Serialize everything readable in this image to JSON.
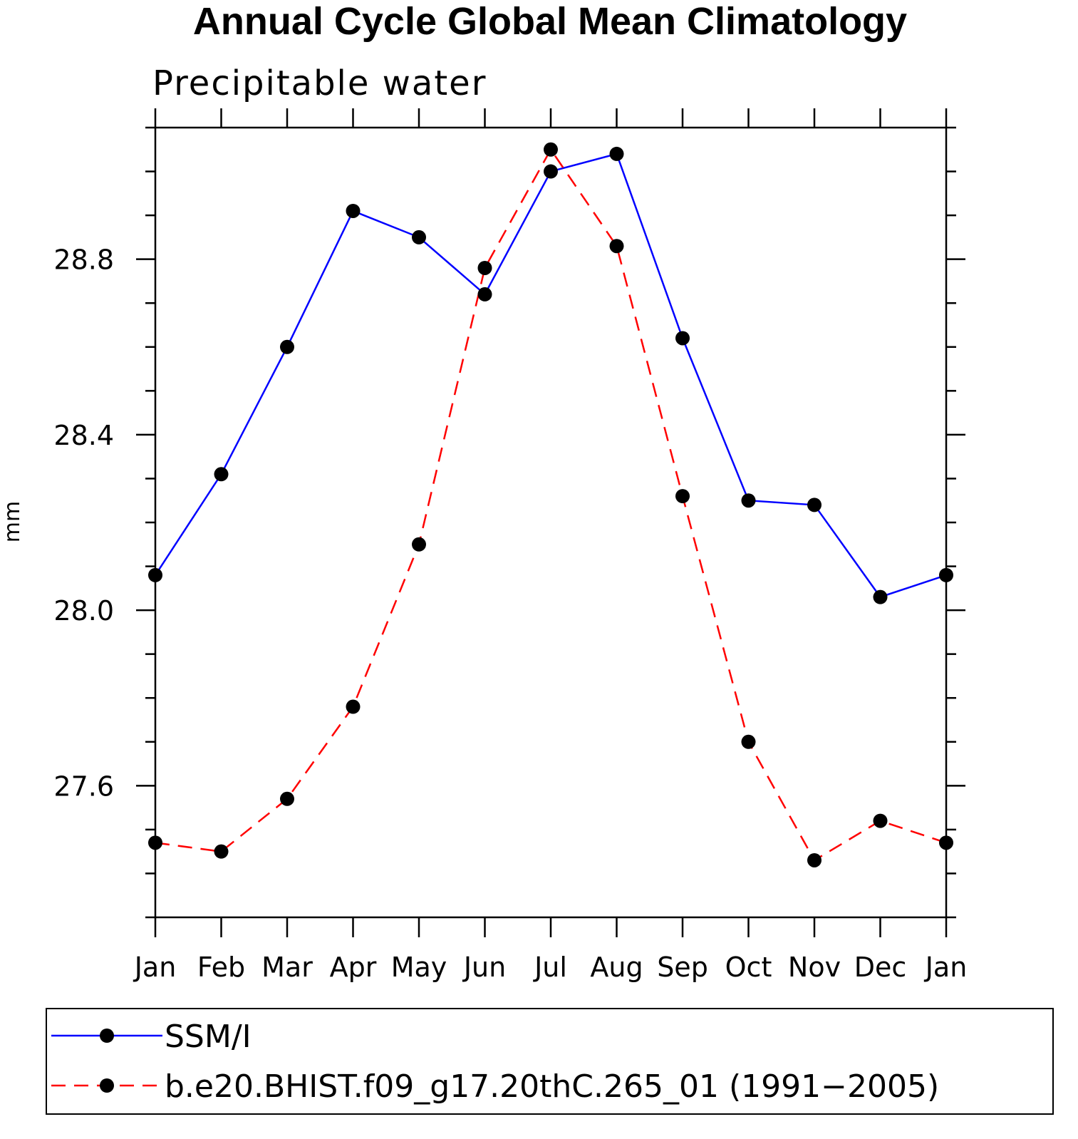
{
  "chart_data": {
    "type": "line",
    "title": "Annual Cycle Global Mean Climatology",
    "subtitle": "Precipitable water",
    "xlabel": "",
    "ylabel": "mm",
    "categories": [
      "Jan",
      "Feb",
      "Mar",
      "Apr",
      "May",
      "Jun",
      "Jul",
      "Aug",
      "Sep",
      "Oct",
      "Nov",
      "Dec",
      "Jan"
    ],
    "ylim": [
      27.3,
      29.1
    ],
    "yticks": [
      27.6,
      28.0,
      28.4,
      28.8
    ],
    "ytick_labels": [
      "27.6",
      "28.0",
      "28.4",
      "28.8"
    ],
    "legend_position": "bottom",
    "series": [
      {
        "name": "SSM/I",
        "color": "#0000ff",
        "line_style": "solid",
        "marker": "circle",
        "values": [
          28.08,
          28.31,
          28.6,
          28.91,
          28.85,
          28.72,
          29.0,
          29.04,
          28.62,
          28.25,
          28.24,
          28.03,
          28.08
        ]
      },
      {
        "name": "b.e20.BHIST.f09_g17.20thC.265_01 (1991−2005)",
        "color": "#ff0000",
        "line_style": "dashed",
        "marker": "circle",
        "values": [
          27.47,
          27.45,
          27.57,
          27.78,
          28.15,
          28.78,
          29.05,
          28.83,
          28.26,
          27.7,
          27.43,
          27.52,
          27.47
        ]
      }
    ]
  }
}
